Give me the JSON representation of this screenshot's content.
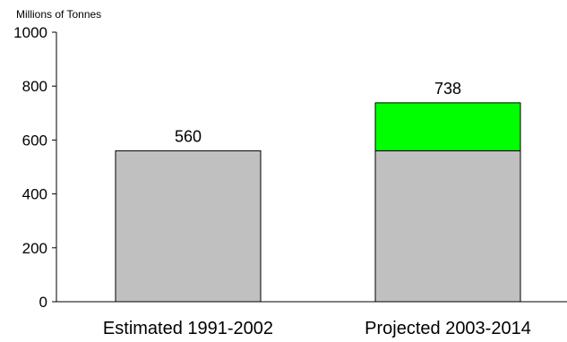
{
  "chart_data": {
    "type": "bar",
    "ylabel": "Millions of Tonnes",
    "ylim": [
      0,
      1000
    ],
    "yticks": [
      0,
      200,
      400,
      600,
      800,
      1000
    ],
    "grid": false,
    "categories": [
      "Estimated 1991-2002",
      "Projected 2003-2014"
    ],
    "totals": [
      560,
      738
    ],
    "series": [
      {
        "values": [
          560,
          560
        ],
        "color": "#c0c0c0"
      },
      {
        "values": [
          0,
          178
        ],
        "color": "#00ff00"
      }
    ],
    "data_labels": [
      "560",
      "738"
    ]
  }
}
